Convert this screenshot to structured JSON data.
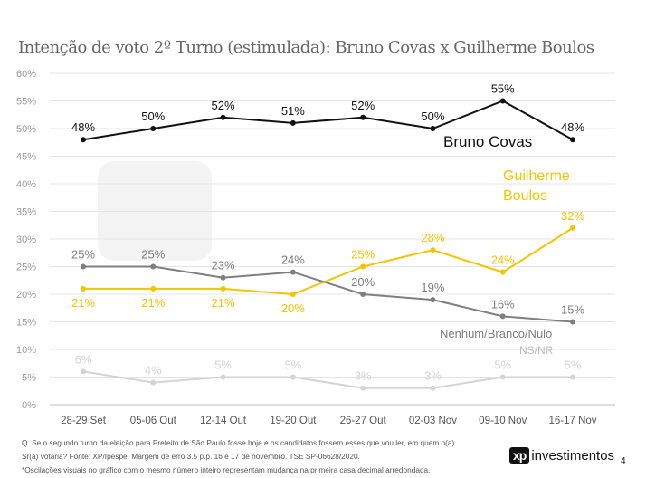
{
  "title": "Intenção de voto 2º Turno (estimulada): Bruno Covas x Guilherme Boulos",
  "chart_data": {
    "type": "line",
    "title": "Intenção de voto 2º Turno (estimulada): Bruno Covas x Guilherme Boulos",
    "categories": [
      "28-29 Set",
      "05-06 Out",
      "12-14 Out",
      "19-20 Out",
      "26-27 Out",
      "02-03 Nov",
      "09-10 Nov",
      "16-17 Nov"
    ],
    "ylim": [
      0,
      60
    ],
    "yticks": [
      "0%",
      "5%",
      "10%",
      "15%",
      "20%",
      "25%",
      "30%",
      "35%",
      "40%",
      "45%",
      "50%",
      "55%",
      "60%"
    ],
    "grid": true,
    "series": [
      {
        "name": "Bruno Covas",
        "color": "#111111",
        "values": [
          48,
          50,
          52,
          51,
          52,
          50,
          55,
          48
        ],
        "labels": [
          "48%",
          "50%",
          "52%",
          "51%",
          "52%",
          "50%",
          "55%",
          "48%"
        ]
      },
      {
        "name": "Guilherme Boulos",
        "color": "#f5c400",
        "values": [
          21,
          21,
          21,
          20,
          25,
          28,
          24,
          32
        ],
        "labels": [
          "21%",
          "21%",
          "21%",
          "20%",
          "25%",
          "28%",
          "24%",
          "32%"
        ]
      },
      {
        "name": "Nenhum/Branco/Nulo",
        "color": "#7f7f7f",
        "values": [
          25,
          25,
          23,
          24,
          20,
          19,
          16,
          15
        ],
        "labels": [
          "25%",
          "25%",
          "23%",
          "24%",
          "20%",
          "19%",
          "16%",
          "15%"
        ]
      },
      {
        "name": "NS/NR",
        "color": "#d4d4d4",
        "values": [
          6,
          4,
          5,
          5,
          3,
          3,
          5,
          5
        ],
        "labels": [
          "6%",
          "4%",
          "5%",
          "5%",
          "3%",
          "3%",
          "5%",
          "5%"
        ]
      }
    ]
  },
  "footnotes": [
    "Q. Se o segundo turno da eleição para Prefeito de São Paulo fosse hoje e os candidatos fossem esses que vou ler, em quem o(a)",
    "Sr(a) votaria? Fonte: XP/Ipespe. Margem de erro 3.5 p.p. 16 e 17 de novembro. TSE SP-06628/2020.",
    "*Oscilações visuais no gráfico com o mesmo número inteiro representam mudança na primeira casa decimal arredondada."
  ],
  "logo": {
    "mark": "xp",
    "text": "investimentos"
  },
  "watermark": "xp investimentos",
  "page_number": "4"
}
